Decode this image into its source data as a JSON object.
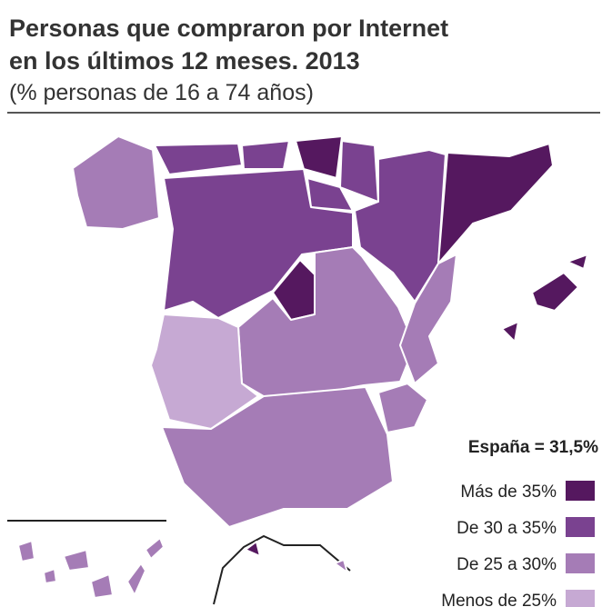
{
  "title": [
    "Personas que compraron por Internet",
    "en los últimos 12 meses. 2013"
  ],
  "subtitle": "(% personas de 16 a 74 años)",
  "note": "España = 31,5%",
  "legend": [
    {
      "label": "Más de 35%",
      "color": "#55185f"
    },
    {
      "label": "De 30 a 35%",
      "color": "#7a4290"
    },
    {
      "label": "De 25 a 30%",
      "color": "#a57cb6"
    },
    {
      "label": "Menos de 25%",
      "color": "#c6a9d3"
    }
  ]
}
